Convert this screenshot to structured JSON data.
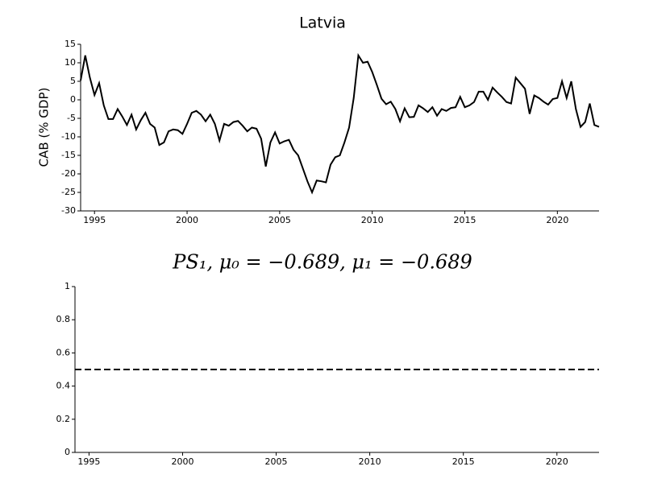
{
  "chart_data": [
    {
      "type": "line",
      "title": "Latvia",
      "ylabel": "CAB (% GDP)",
      "x": [
        1994.25,
        1994.5,
        1994.75,
        1995,
        1995.25,
        1995.5,
        1995.75,
        1996,
        1996.25,
        1996.5,
        1996.75,
        1997,
        1997.25,
        1997.5,
        1997.75,
        1998,
        1998.25,
        1998.5,
        1998.75,
        1999,
        1999.25,
        1999.5,
        1999.75,
        2000,
        2000.25,
        2000.5,
        2000.75,
        2001,
        2001.25,
        2001.5,
        2001.75,
        2002,
        2002.25,
        2002.5,
        2002.75,
        2003,
        2003.25,
        2003.5,
        2003.75,
        2004,
        2004.25,
        2004.5,
        2004.75,
        2005,
        2005.25,
        2005.5,
        2005.75,
        2006,
        2006.25,
        2006.5,
        2006.75,
        2007,
        2007.25,
        2007.5,
        2007.75,
        2008,
        2008.25,
        2008.5,
        2008.75,
        2009,
        2009.25,
        2009.5,
        2009.75,
        2010,
        2010.25,
        2010.5,
        2010.75,
        2011,
        2011.25,
        2011.5,
        2011.75,
        2012,
        2012.25,
        2012.5,
        2012.75,
        2013,
        2013.25,
        2013.5,
        2013.75,
        2014,
        2014.25,
        2014.5,
        2014.75,
        2015,
        2015.25,
        2015.5,
        2015.75,
        2016,
        2016.25,
        2016.5,
        2016.75,
        2017,
        2017.25,
        2017.5,
        2017.75,
        2018,
        2018.25,
        2018.5,
        2018.75,
        2019,
        2019.25,
        2019.5,
        2019.75,
        2020,
        2020.25,
        2020.5,
        2020.75,
        2021,
        2021.25,
        2021.5,
        2021.75,
        2022,
        2022.25
      ],
      "series": [
        {
          "color": "#000000",
          "values": [
            5.2,
            12,
            6,
            1.3,
            4.5,
            -1.5,
            -5.2,
            -5.2,
            -2.5,
            -4.5,
            -6.8,
            -4,
            -8,
            -5.5,
            -3.5,
            -6.5,
            -7.5,
            -12.2,
            -11.5,
            -8.5,
            -8,
            -8.2,
            -9.2,
            -6.5,
            -3.5,
            -3,
            -4,
            -5.8,
            -4,
            -6.5,
            -11,
            -6.5,
            -7,
            -6,
            -5.7,
            -7,
            -8.5,
            -7.5,
            -7.8,
            -10.5,
            -18,
            -11.5,
            -8.8,
            -11.8,
            -11.2,
            -10.8,
            -13.5,
            -15,
            -18.5,
            -22,
            -25,
            -21.8,
            -22,
            -22.3,
            -17.5,
            -15.5,
            -15,
            -11.5,
            -7.5,
            0.5,
            12,
            10,
            10.3,
            7.5,
            4,
            0.3,
            -1.2,
            -0.5,
            -2.5,
            -5.8,
            -2.3,
            -4.7,
            -4.6,
            -1.5,
            -2.3,
            -3.3,
            -2,
            -4.3,
            -2.5,
            -3,
            -2.2,
            -2,
            0.8,
            -2,
            -1.5,
            -0.6,
            2.2,
            2.2,
            0,
            3.3,
            2,
            0.8,
            -0.6,
            -1,
            6,
            4.5,
            3,
            -3.8,
            1.2,
            0.5,
            -0.5,
            -1.3,
            0.2,
            0.5,
            5,
            0.5,
            5,
            -2.5,
            -7.3,
            -6,
            -1,
            -6.8,
            -7.3
          ],
          "linestyle": "solid"
        }
      ],
      "xlim": [
        1994.25,
        2022.25
      ],
      "xticks": [
        1995,
        2000,
        2005,
        2010,
        2015,
        2020
      ],
      "ylim": [
        -30,
        15
      ],
      "yticks": [
        -30,
        -25,
        -20,
        -15,
        -10,
        -5,
        0,
        5,
        10,
        15
      ]
    },
    {
      "type": "line",
      "title": "PS₁, μ₀ = −0.689, μ₁ = −0.689",
      "x": [
        1994.25,
        2022.25
      ],
      "series": [
        {
          "color": "#000000",
          "values": [
            0.5,
            0.5
          ],
          "linestyle": "dashed"
        }
      ],
      "xlim": [
        1994.25,
        2022.25
      ],
      "xticks": [
        1995,
        2000,
        2005,
        2010,
        2015,
        2020
      ],
      "ylim": [
        0,
        1
      ],
      "yticks": [
        0,
        0.2,
        0.4,
        0.6,
        0.8,
        1
      ]
    }
  ]
}
